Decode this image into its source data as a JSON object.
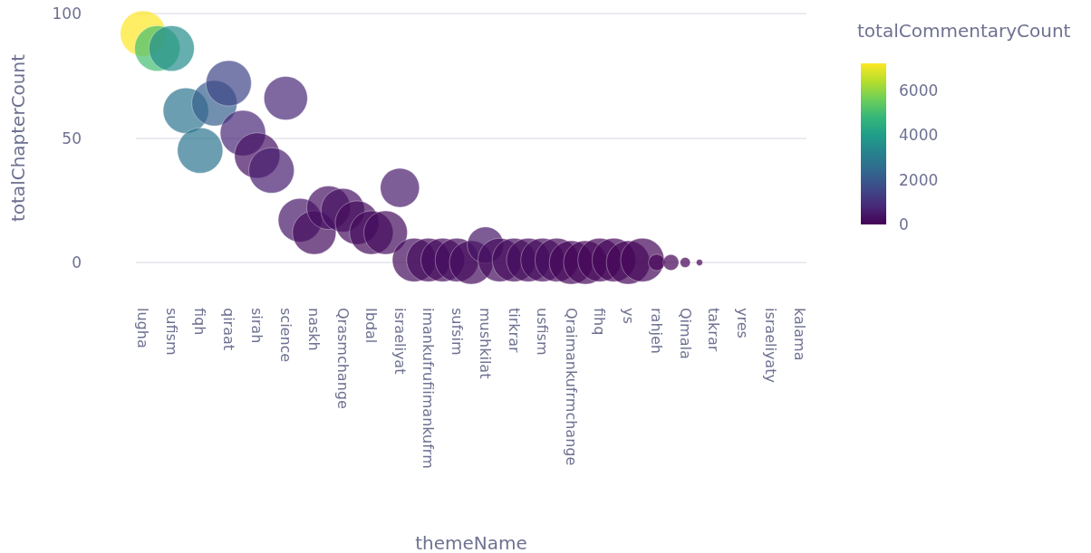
{
  "chart_data": {
    "type": "bubble",
    "xlabel": "themeName",
    "ylabel": "totalChapterCount",
    "clabel": "totalCommentaryCount",
    "categories": [
      "lugha",
      null,
      "sufism",
      null,
      "fiqh",
      null,
      "qiraat",
      null,
      "sirah",
      null,
      "science",
      null,
      "naskh",
      null,
      "Qrasmchange",
      null,
      "Ibdal",
      null,
      "israeliyat",
      null,
      "imankufrufiimankufrm",
      null,
      "sufsim",
      null,
      "mushkilat",
      null,
      "tirkrar",
      null,
      "usfism",
      null,
      "Qraimankufrmchange",
      null,
      "fihq",
      null,
      "ys",
      null,
      "rahjeh",
      null,
      "Qimala",
      null,
      "takrar",
      null,
      "yres",
      null,
      "israeliyaty",
      null,
      "kalama"
    ],
    "values": [
      92,
      86,
      86,
      61,
      45,
      64,
      72,
      52,
      43,
      37,
      66,
      17,
      12,
      22,
      21,
      16,
      12,
      12,
      30,
      1,
      1,
      1,
      1,
      0,
      7,
      1,
      1,
      1,
      1,
      1,
      0,
      0,
      1,
      1,
      0,
      1,
      0,
      0,
      0,
      0,
      null,
      null,
      null,
      null,
      null,
      null,
      null
    ],
    "sizes": [
      1,
      1,
      1,
      1,
      1,
      1,
      1,
      1,
      1,
      1,
      0.92,
      0.92,
      0.92,
      0.92,
      0.92,
      0.92,
      0.92,
      0.92,
      0.74,
      0.92,
      0.92,
      0.92,
      0.92,
      0.92,
      0.64,
      0.92,
      0.92,
      0.92,
      0.92,
      0.92,
      0.92,
      0.92,
      0.92,
      0.92,
      0.92,
      0.92,
      0.13,
      0.12,
      0.05,
      0.02,
      null,
      null,
      null,
      null,
      null,
      null,
      null
    ],
    "cvalues": [
      7200,
      5000,
      3500,
      2800,
      2800,
      2200,
      1500,
      800,
      300,
      600,
      800,
      400,
      200,
      300,
      300,
      200,
      200,
      200,
      500,
      200,
      200,
      200,
      200,
      200,
      400,
      200,
      200,
      200,
      200,
      200,
      100,
      100,
      100,
      100,
      100,
      100,
      50,
      50,
      20,
      10,
      null,
      null,
      null,
      null,
      null,
      null,
      null
    ],
    "clim": [
      0,
      7200
    ],
    "cticks": [
      0,
      2000,
      4000,
      6000
    ],
    "ylim": [
      0,
      100
    ],
    "yticks": [
      0,
      50,
      100
    ],
    "grid": "y"
  }
}
